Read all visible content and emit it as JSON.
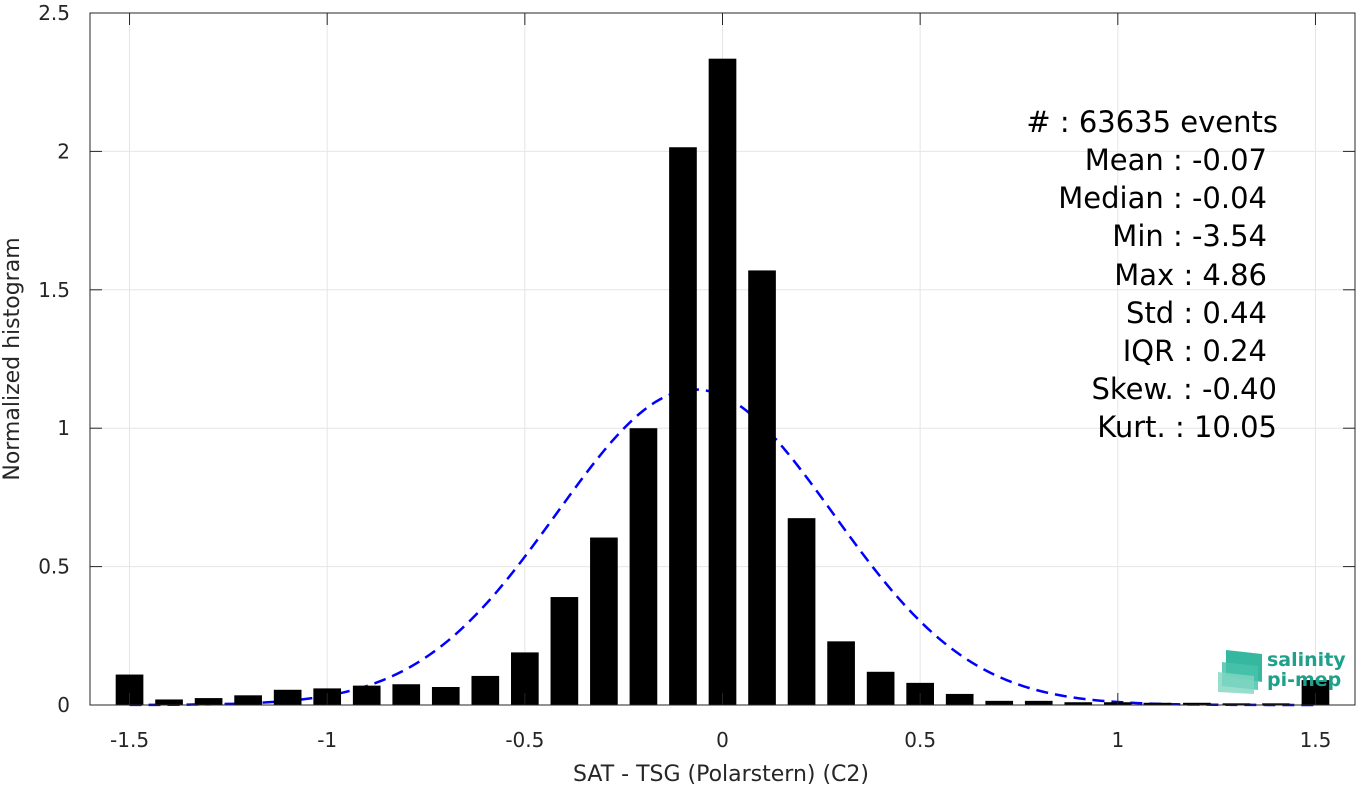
{
  "chart_data": {
    "type": "bar",
    "xlabel": "SAT - TSG (Polarstern) (C2)",
    "ylabel": "Normalized histogram",
    "xlim": [
      -1.6,
      1.6
    ],
    "ylim": [
      0,
      2.5
    ],
    "x_ticks": [
      -1.5,
      -1,
      -0.5,
      0,
      0.5,
      1,
      1.5
    ],
    "x_tick_labels": [
      "-1.5",
      "-1",
      "-0.5",
      "0",
      "0.5",
      "1",
      "1.5"
    ],
    "y_ticks": [
      0,
      0.5,
      1,
      1.5,
      2,
      2.5
    ],
    "y_tick_labels": [
      "0",
      "0.5",
      "1",
      "1.5",
      "2",
      "2.5"
    ],
    "grid": true,
    "bar_width": 0.07,
    "bars": {
      "x": [
        -1.5,
        -1.4,
        -1.3,
        -1.2,
        -1.1,
        -1.0,
        -0.9,
        -0.8,
        -0.7,
        -0.6,
        -0.5,
        -0.4,
        -0.3,
        -0.2,
        -0.1,
        0.0,
        0.1,
        0.2,
        0.3,
        0.4,
        0.5,
        0.6,
        0.7,
        0.8,
        0.9,
        1.0,
        1.1,
        1.2,
        1.3,
        1.4,
        1.5
      ],
      "values": [
        0.11,
        0.02,
        0.025,
        0.035,
        0.055,
        0.06,
        0.07,
        0.075,
        0.065,
        0.105,
        0.19,
        0.39,
        0.605,
        1.0,
        2.015,
        2.335,
        1.57,
        0.675,
        0.23,
        0.12,
        0.08,
        0.04,
        0.015,
        0.015,
        0.01,
        0.01,
        0.008,
        0.008,
        0.006,
        0.006,
        0.09
      ],
      "color": "#000000"
    },
    "fit": {
      "style": "dashed",
      "color": "#0000ff",
      "mean": -0.07,
      "std": 0.35
    },
    "stats": [
      "#  : 63635 events",
      "Mean : -0.07",
      "Median : -0.04",
      "Min : -3.54",
      "Max : 4.86",
      "Std : 0.44",
      "IQR : 0.24",
      "Skew. : -0.40",
      "Kurt. : 10.05"
    ]
  },
  "logo": {
    "line1": "salinity",
    "line2": "pi-mep",
    "color": "#1fa08a"
  }
}
